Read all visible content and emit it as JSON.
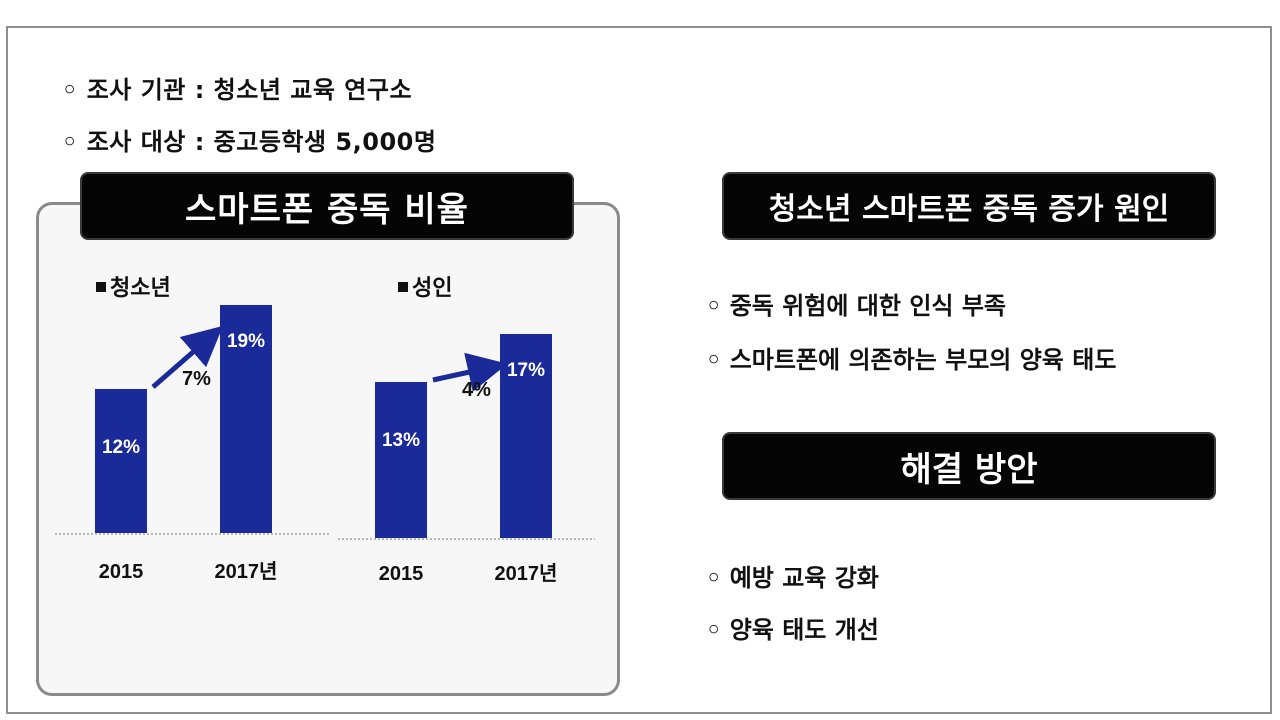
{
  "info": [
    "◦ 조사 기관 : 청소년 교육 연구소",
    "◦ 조사 대상 : 중고등학생 5,000명"
  ],
  "left_title": "스마트폰 중독 비율",
  "right_title_causes": "청소년 스마트폰 중독 증가 원인",
  "causes": [
    "◦ 중독 위험에 대한 인식 부족",
    "◦ 스마트폰에 의존하는 부모의 양육 태도"
  ],
  "right_title_solutions": "해결 방안",
  "solutions": [
    "◦ 예방 교육 강화",
    "◦ 양육 태도 개선"
  ],
  "colors": {
    "bar": "#1b2a99",
    "arrow": "#1b2a99",
    "title_bg": "#050505"
  },
  "chart_data": [
    {
      "type": "bar",
      "legend": "청소년",
      "categories": [
        "2015",
        "2017년"
      ],
      "values": [
        12,
        19
      ],
      "value_labels": [
        "12%",
        "19%"
      ],
      "increase_label": "7%",
      "ylim": [
        0,
        20
      ]
    },
    {
      "type": "bar",
      "legend": "성인",
      "categories": [
        "2015",
        "2017년"
      ],
      "values": [
        13,
        17
      ],
      "value_labels": [
        "13%",
        "17%"
      ],
      "increase_label": "4%",
      "ylim": [
        0,
        20
      ]
    }
  ]
}
